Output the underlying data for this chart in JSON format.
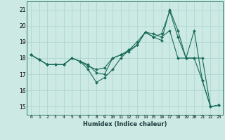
{
  "xlabel": "Humidex (Indice chaleur)",
  "xlim": [
    -0.5,
    23.5
  ],
  "ylim": [
    14.5,
    21.5
  ],
  "yticks": [
    15,
    16,
    17,
    18,
    19,
    20,
    21
  ],
  "xticks": [
    0,
    1,
    2,
    3,
    4,
    5,
    6,
    7,
    8,
    9,
    10,
    11,
    12,
    13,
    14,
    15,
    16,
    17,
    18,
    19,
    20,
    21,
    22,
    23
  ],
  "bg_color": "#cce9e4",
  "line_color": "#1a6b5a",
  "grid_color": "#a8d4ce",
  "lines": [
    [
      18.2,
      17.9,
      17.6,
      17.6,
      17.6,
      18.0,
      17.8,
      17.3,
      16.5,
      16.8,
      17.3,
      18.0,
      18.5,
      18.8,
      19.6,
      19.3,
      19.1,
      21.0,
      19.7,
      18.0,
      18.0,
      16.6,
      15.0,
      15.1
    ],
    [
      18.2,
      17.9,
      17.6,
      17.6,
      17.6,
      18.0,
      17.8,
      17.5,
      17.3,
      17.4,
      18.0,
      18.2,
      18.5,
      19.0,
      19.6,
      19.5,
      19.3,
      19.7,
      18.0,
      18.0,
      18.0,
      18.0,
      15.0,
      15.1
    ],
    [
      18.2,
      17.9,
      17.6,
      17.6,
      17.6,
      18.0,
      17.8,
      17.6,
      17.1,
      17.0,
      18.0,
      18.2,
      18.4,
      18.8,
      19.6,
      19.3,
      19.5,
      20.9,
      19.3,
      18.0,
      19.7,
      16.6,
      15.0,
      15.1
    ]
  ]
}
